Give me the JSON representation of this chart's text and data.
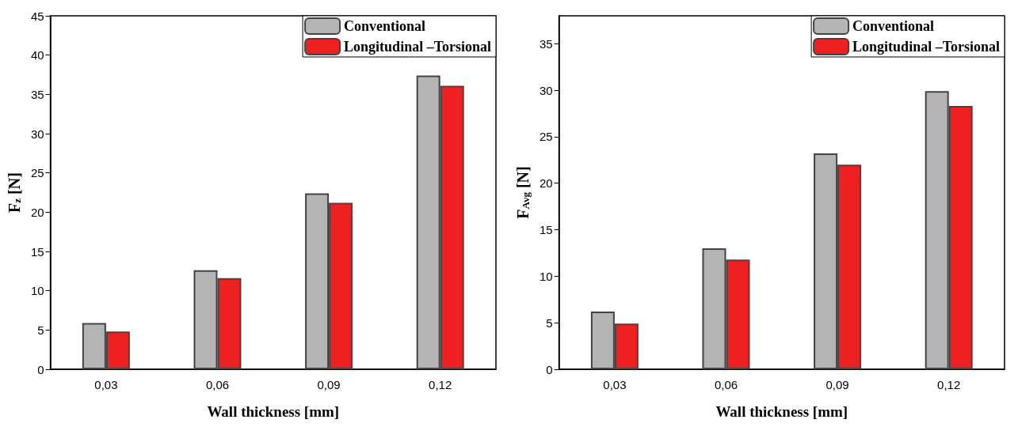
{
  "chart_data": [
    {
      "type": "bar",
      "xlabel": "Wall thickness [mm]",
      "ylabel": "F$_{z}$ [N]",
      "categories": [
        "0,03",
        "0,06",
        "0,09",
        "0,12"
      ],
      "ylim": [
        0,
        45
      ],
      "yticks": [
        0,
        5,
        10,
        15,
        20,
        25,
        30,
        35,
        40,
        45
      ],
      "legend": "top right",
      "grid": false,
      "series": [
        {
          "name": "Conventional",
          "color": "#b4b4b4",
          "values": [
            5.9,
            12.6,
            22.4,
            37.4
          ]
        },
        {
          "name": "Longitudinal –Torsional",
          "color": "#ee2020",
          "values": [
            4.8,
            11.6,
            21.2,
            36.1
          ]
        }
      ]
    },
    {
      "type": "bar",
      "xlabel": "Wall thickness [mm]",
      "ylabel": "F$_{Avg}$ [N]",
      "categories": [
        "0,03",
        "0,06",
        "0,09",
        "0,12"
      ],
      "ylim": [
        0,
        38
      ],
      "yticks": [
        0,
        5,
        10,
        15,
        20,
        25,
        30,
        35
      ],
      "legend": "top right",
      "grid": false,
      "series": [
        {
          "name": "Conventional",
          "color": "#b4b4b4",
          "values": [
            6.2,
            13.0,
            23.2,
            29.9
          ]
        },
        {
          "name": "Longitudinal –Torsional",
          "color": "#ee2020",
          "values": [
            4.9,
            11.8,
            22.0,
            28.3
          ]
        }
      ]
    }
  ]
}
